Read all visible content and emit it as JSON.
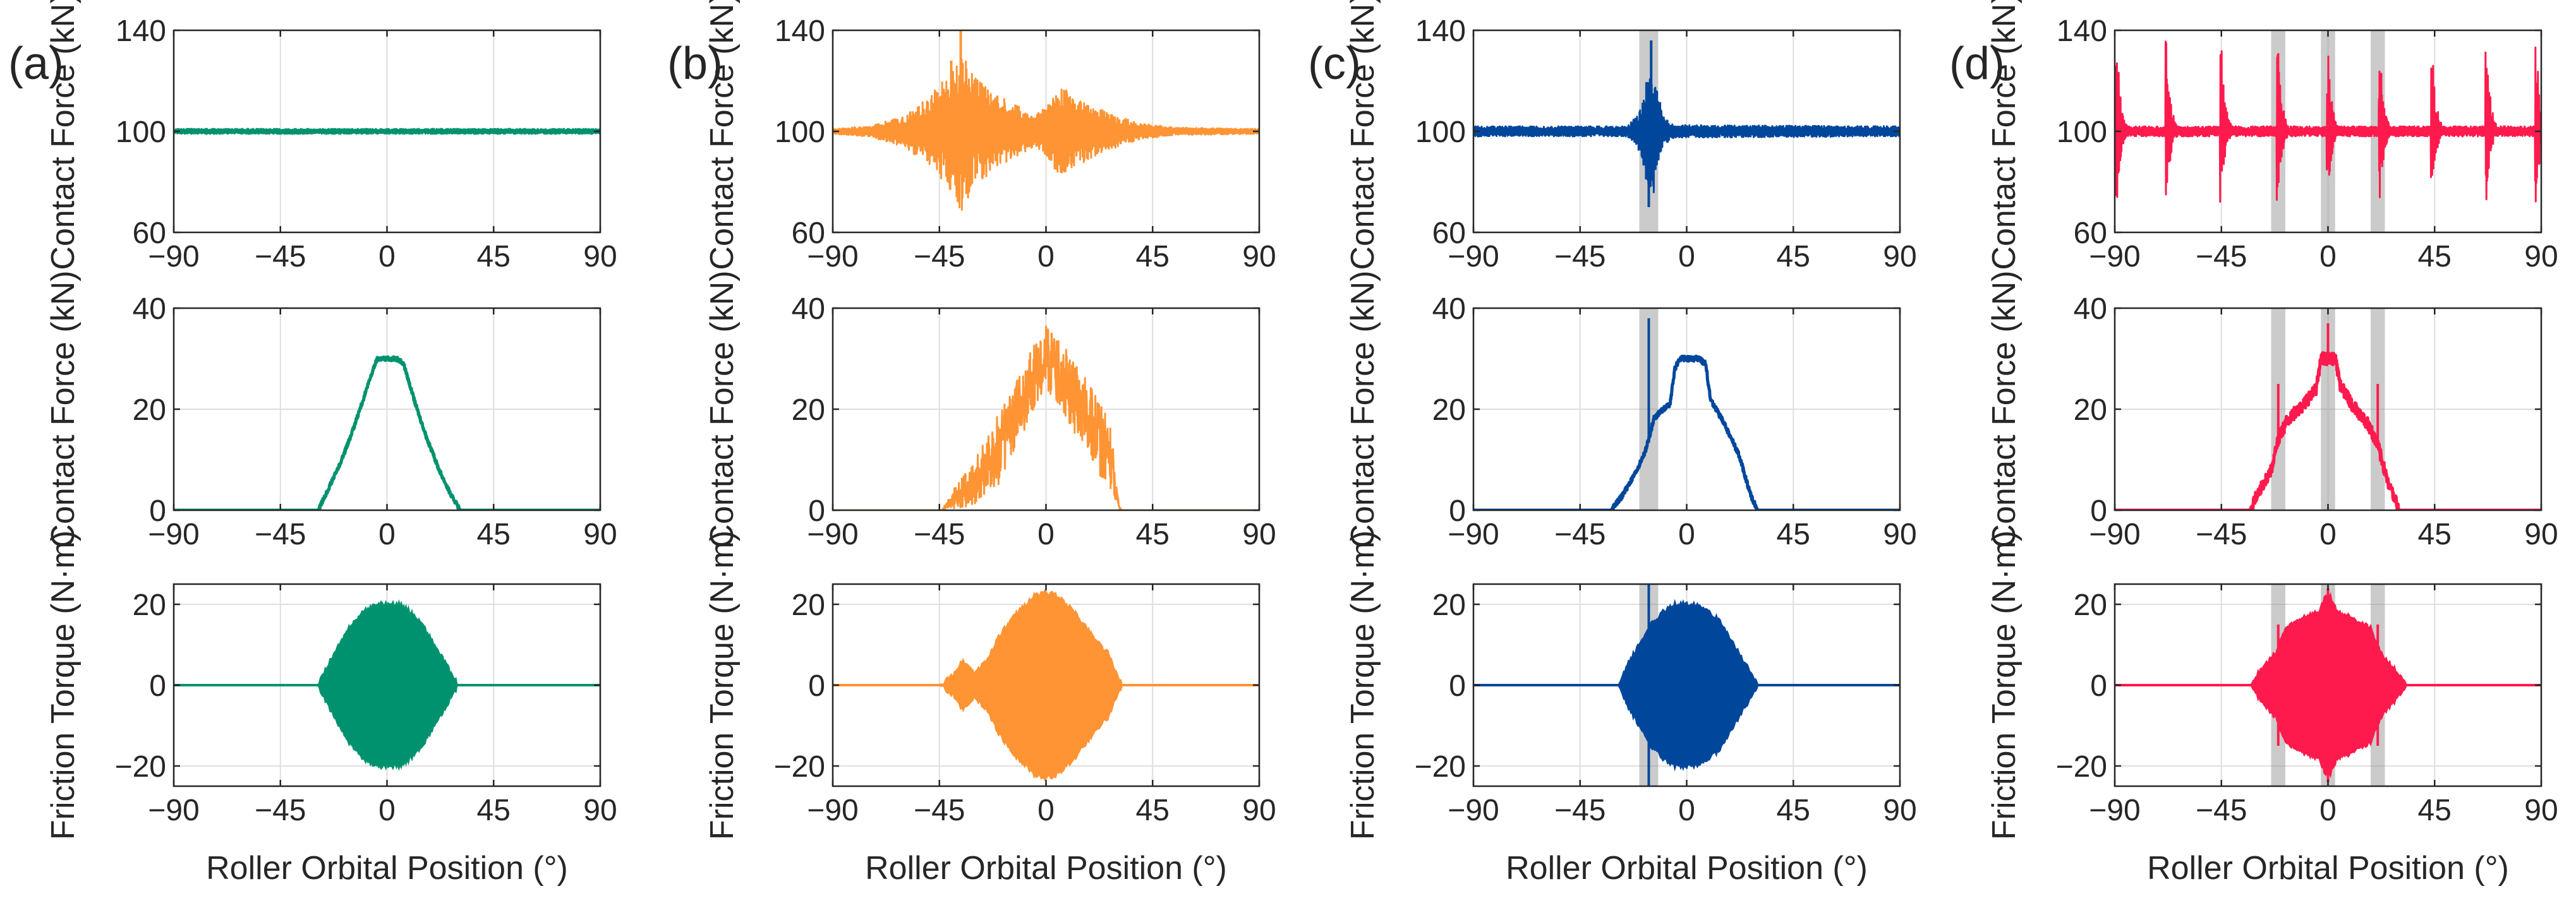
{
  "figure": {
    "panel_labels": [
      "(a)",
      "(b)",
      "(c)",
      "(d)"
    ],
    "row_ylabels": [
      "Contact Force (kN)",
      "Contact Force (kN)",
      "Friction Torque (N·m)"
    ],
    "xlabel": "Roller Orbital Position (°)"
  },
  "chart_data": [
    {
      "panel": "(a)",
      "type": "line",
      "series_color": "#00926e",
      "xlim": [
        -90,
        90
      ],
      "xticks": [
        -90,
        -45,
        0,
        45,
        90
      ],
      "shaded_regions": [],
      "subplots": [
        {
          "ylabel": "Contact Force (kN)",
          "ylim": [
            60,
            140
          ],
          "yticks": [
            60,
            100,
            140
          ],
          "baseline": 100,
          "signal": {
            "kind": "osc",
            "envelope": [
              [
                -90,
                1
              ],
              [
                90,
                1
              ]
            ]
          }
        },
        {
          "ylabel": "Contact Force (kN)",
          "ylim": [
            0,
            40
          ],
          "yticks": [
            0,
            20,
            40
          ],
          "signal": {
            "kind": "profile",
            "noise": 0.4,
            "points": [
              [
                -90,
                0
              ],
              [
                -29,
                0
              ],
              [
                -25,
                4
              ],
              [
                -20,
                9
              ],
              [
                -15,
                15
              ],
              [
                -10,
                22
              ],
              [
                -5,
                29
              ],
              [
                -4,
                30
              ],
              [
                4,
                30
              ],
              [
                7,
                29
              ],
              [
                12,
                21
              ],
              [
                17,
                14
              ],
              [
                22,
                8
              ],
              [
                27,
                3
              ],
              [
                31,
                0
              ],
              [
                90,
                0
              ]
            ]
          }
        },
        {
          "ylabel": "Friction Torque (N·m)",
          "ylim": [
            -25,
            25
          ],
          "yticks": [
            -20,
            0,
            20
          ],
          "signal": {
            "kind": "fill",
            "envelope": [
              [
                -90,
                0
              ],
              [
                -29,
                0
              ],
              [
                -25,
                5
              ],
              [
                -20,
                10
              ],
              [
                -15,
                15
              ],
              [
                -10,
                18
              ],
              [
                -5,
                20
              ],
              [
                5,
                20
              ],
              [
                10,
                18
              ],
              [
                15,
                15
              ],
              [
                20,
                10
              ],
              [
                25,
                5
              ],
              [
                30,
                0
              ],
              [
                90,
                0
              ]
            ]
          }
        }
      ]
    },
    {
      "panel": "(b)",
      "type": "line",
      "series_color": "#ff9434",
      "xlim": [
        -90,
        90
      ],
      "xticks": [
        -90,
        -45,
        0,
        45,
        90
      ],
      "shaded_regions": [],
      "subplots": [
        {
          "ylabel": "Contact Force (kN)",
          "ylim": [
            60,
            140
          ],
          "yticks": [
            60,
            100,
            140
          ],
          "baseline": 100,
          "signal": {
            "kind": "osc",
            "envelope": [
              [
                -90,
                1
              ],
              [
                -75,
                2
              ],
              [
                -60,
                6
              ],
              [
                -50,
                13
              ],
              [
                -42,
                22
              ],
              [
                -36,
                32
              ],
              [
                -30,
                22
              ],
              [
                -22,
                15
              ],
              [
                -12,
                10
              ],
              [
                -5,
                6
              ],
              [
                0,
                10
              ],
              [
                6,
                18
              ],
              [
                12,
                14
              ],
              [
                25,
                8
              ],
              [
                40,
                3
              ],
              [
                55,
                1.5
              ],
              [
                90,
                1
              ]
            ],
            "spikes": [
              {
                "x": -36,
                "value": 140
              },
              {
                "x": -40,
                "value": 128
              }
            ]
          }
        },
        {
          "ylabel": "Contact Force (kN)",
          "ylim": [
            0,
            40
          ],
          "yticks": [
            0,
            20,
            40
          ],
          "signal": {
            "kind": "band",
            "lower": [
              [
                -90,
                0
              ],
              [
                -42,
                0
              ],
              [
                -30,
                1
              ],
              [
                -20,
                5
              ],
              [
                -10,
                15
              ],
              [
                -5,
                20
              ],
              [
                0,
                24
              ],
              [
                5,
                21
              ],
              [
                10,
                17
              ],
              [
                20,
                9
              ],
              [
                28,
                3
              ],
              [
                32,
                0
              ],
              [
                90,
                0
              ]
            ],
            "upper": [
              [
                -90,
                0
              ],
              [
                -44,
                0
              ],
              [
                -38,
                5
              ],
              [
                -30,
                10
              ],
              [
                -22,
                18
              ],
              [
                -15,
                23
              ],
              [
                -10,
                28
              ],
              [
                -5,
                33
              ],
              [
                0,
                37
              ],
              [
                5,
                34
              ],
              [
                10,
                31
              ],
              [
                20,
                24
              ],
              [
                27,
                18
              ],
              [
                31,
                0
              ],
              [
                90,
                0
              ]
            ]
          }
        },
        {
          "ylabel": "Friction Torque (N·m)",
          "ylim": [
            -25,
            25
          ],
          "yticks": [
            -20,
            0,
            20
          ],
          "signal": {
            "kind": "fill",
            "envelope": [
              [
                -90,
                0
              ],
              [
                -45,
                0
              ],
              [
                -40,
                2
              ],
              [
                -35,
                6
              ],
              [
                -30,
                3
              ],
              [
                -25,
                6
              ],
              [
                -20,
                12
              ],
              [
                -12,
                18
              ],
              [
                -5,
                22
              ],
              [
                0,
                23
              ],
              [
                5,
                22
              ],
              [
                12,
                18
              ],
              [
                20,
                12
              ],
              [
                26,
                8
              ],
              [
                32,
                0
              ],
              [
                90,
                0
              ]
            ]
          }
        }
      ]
    },
    {
      "panel": "(c)",
      "type": "line",
      "series_color": "#00479c",
      "xlim": [
        -90,
        90
      ],
      "xticks": [
        -90,
        -45,
        0,
        45,
        90
      ],
      "shaded_regions": [
        [
          -20,
          -12
        ]
      ],
      "subplots": [
        {
          "ylabel": "Contact Force (kN)",
          "ylim": [
            60,
            140
          ],
          "yticks": [
            60,
            100,
            140
          ],
          "baseline": 100,
          "signal": {
            "kind": "osc",
            "envelope": [
              [
                -90,
                2
              ],
              [
                -25,
                2
              ],
              [
                -20,
                8
              ],
              [
                -17,
                20
              ],
              [
                -15,
                30
              ],
              [
                -13,
                20
              ],
              [
                -10,
                6
              ],
              [
                -5,
                2.5
              ],
              [
                90,
                2
              ]
            ],
            "spikes": [
              {
                "x": -15,
                "value": 136
              },
              {
                "x": -16,
                "value": 70
              }
            ]
          }
        },
        {
          "ylabel": "Contact Force (kN)",
          "ylim": [
            0,
            40
          ],
          "yticks": [
            0,
            20,
            40
          ],
          "signal": {
            "kind": "profile",
            "noise": 0.5,
            "points": [
              [
                -90,
                0
              ],
              [
                -32,
                0
              ],
              [
                -27,
                3
              ],
              [
                -22,
                7
              ],
              [
                -18,
                11
              ],
              [
                -16,
                14
              ],
              [
                -14,
                18
              ],
              [
                -10,
                20
              ],
              [
                -7,
                21
              ],
              [
                -5,
                28
              ],
              [
                -3,
                30
              ],
              [
                5,
                30
              ],
              [
                8,
                29
              ],
              [
                10,
                22
              ],
              [
                16,
                17
              ],
              [
                22,
                11
              ],
              [
                27,
                3
              ],
              [
                30,
                0
              ],
              [
                90,
                0
              ]
            ],
            "spikes": [
              {
                "x": -16,
                "value": 38
              }
            ]
          }
        },
        {
          "ylabel": "Friction Torque (N·m)",
          "ylim": [
            -25,
            25
          ],
          "yticks": [
            -20,
            0,
            20
          ],
          "signal": {
            "kind": "fill",
            "envelope": [
              [
                -90,
                0
              ],
              [
                -29,
                0
              ],
              [
                -25,
                5
              ],
              [
                -20,
                10
              ],
              [
                -15,
                15
              ],
              [
                -10,
                18
              ],
              [
                -5,
                20
              ],
              [
                5,
                20
              ],
              [
                10,
                18
              ],
              [
                15,
                15
              ],
              [
                20,
                10
              ],
              [
                25,
                5
              ],
              [
                30,
                0
              ],
              [
                90,
                0
              ]
            ],
            "spikes": [
              {
                "x": -16,
                "value": 25
              }
            ]
          }
        }
      ]
    },
    {
      "panel": "(d)",
      "type": "line",
      "series_color": "#ff1a4d",
      "xlim": [
        -90,
        90
      ],
      "xticks": [
        -90,
        -45,
        0,
        45,
        90
      ],
      "shaded_regions": [
        [
          -24,
          -18
        ],
        [
          -3,
          3
        ],
        [
          18,
          24
        ]
      ],
      "subplots": [
        {
          "ylabel": "Contact Force (kN)",
          "ylim": [
            60,
            140
          ],
          "yticks": [
            60,
            100,
            140
          ],
          "baseline": 100,
          "signal": {
            "kind": "osc",
            "envelope": [
              [
                -90,
                2
              ],
              [
                90,
                2
              ]
            ],
            "impacts": [
              -89,
              -68,
              -45,
              -21,
              0,
              22,
              44,
              67,
              88
            ],
            "impact_peak": 36,
            "impact_trough": 28
          }
        },
        {
          "ylabel": "Contact Force (kN)",
          "ylim": [
            0,
            40
          ],
          "yticks": [
            0,
            20,
            40
          ],
          "signal": {
            "kind": "profile",
            "noise": 1.2,
            "points": [
              [
                -90,
                0
              ],
              [
                -33,
                0
              ],
              [
                -30,
                3
              ],
              [
                -24,
                8
              ],
              [
                -21,
                14
              ],
              [
                -17,
                18
              ],
              [
                -10,
                21
              ],
              [
                -5,
                24
              ],
              [
                -3,
                30
              ],
              [
                3,
                30
              ],
              [
                5,
                25
              ],
              [
                10,
                21
              ],
              [
                17,
                17
              ],
              [
                21,
                13
              ],
              [
                25,
                6
              ],
              [
                30,
                0
              ],
              [
                90,
                0
              ]
            ],
            "spikes": [
              {
                "x": -21,
                "value": 25
              },
              {
                "x": 0,
                "value": 37
              },
              {
                "x": 21,
                "value": 25
              }
            ]
          }
        },
        {
          "ylabel": "Friction Torque (N·m)",
          "ylim": [
            -25,
            25
          ],
          "yticks": [
            -20,
            0,
            20
          ],
          "signal": {
            "kind": "fill",
            "envelope": [
              [
                -90,
                0
              ],
              [
                -33,
                0
              ],
              [
                -28,
                4
              ],
              [
                -22,
                8
              ],
              [
                -18,
                14
              ],
              [
                -10,
                17
              ],
              [
                -4,
                18
              ],
              [
                -1,
                22
              ],
              [
                1,
                22
              ],
              [
                4,
                18
              ],
              [
                10,
                17
              ],
              [
                18,
                14
              ],
              [
                22,
                8
              ],
              [
                28,
                4
              ],
              [
                33,
                0
              ],
              [
                90,
                0
              ]
            ],
            "spikes": [
              {
                "x": -21,
                "value": 15
              },
              {
                "x": 0,
                "value": 24
              },
              {
                "x": 21,
                "value": 15
              }
            ]
          }
        }
      ]
    }
  ]
}
